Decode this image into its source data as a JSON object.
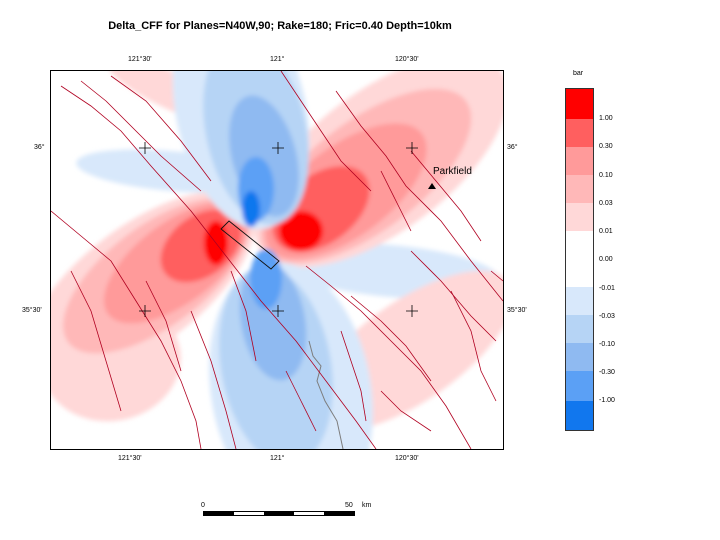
{
  "title": "Delta_CFF for Planes=N40W,90; Rake=180; Fric=0.40 Depth=10km",
  "map": {
    "top_ticks": [
      "121°30'",
      "121°",
      "120°30'"
    ],
    "bottom_ticks": [
      "121°30'",
      "121°",
      "120°30'"
    ],
    "left_ticks": [
      "36°",
      "35°30'"
    ],
    "right_ticks": [
      "36°",
      "35°30'"
    ],
    "place_label": "Parkfield",
    "colors": {
      "pos_strong": "#ff0000",
      "pos_1": "#ff5f5f",
      "pos_2": "#ff9a9a",
      "pos_3": "#ffb8b8",
      "pos_4": "#ffd8d8",
      "zero": "#ffffff",
      "neg_4": "#d8e8fb",
      "neg_3": "#b6d4f5",
      "neg_2": "#8fbaf1",
      "neg_1": "#5ba0f5",
      "neg_strong": "#1177ee",
      "fault": "#b00020",
      "coast": "#7d7d7d"
    }
  },
  "legend": {
    "unit": "bar",
    "labels": [
      "1.00",
      "0.30",
      "0.10",
      "0.03",
      "0.01",
      "0.00",
      "-0.01",
      "-0.03",
      "-0.10",
      "-0.30",
      "-1.00"
    ]
  },
  "scalebar": {
    "start_label": "0",
    "end_label": "50",
    "unit": "km"
  }
}
